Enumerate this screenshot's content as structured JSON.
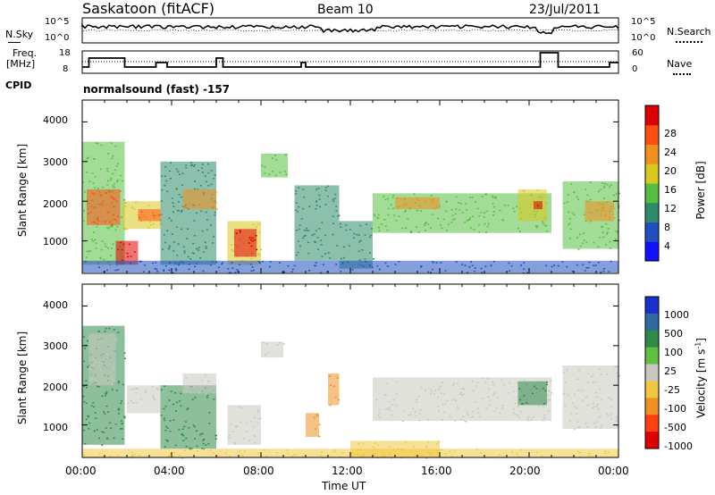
{
  "header": {
    "station": "Saskatoon (fitACF)",
    "beam": "Beam 10",
    "date": "23/Jul/2011"
  },
  "top_panels": {
    "nsky_label": "N.Sky",
    "nsky_ticks": [
      "10^5",
      "10^0"
    ],
    "nsearch_label": "N.Search",
    "nsearch_ticks": [
      "10^5",
      "10^0"
    ],
    "freq_label_1": "Freq.",
    "freq_label_2": "[MHz]",
    "freq_ticks": [
      "18",
      "8"
    ],
    "nave_label": "Nave",
    "nave_ticks": [
      "60",
      "0"
    ],
    "cpid_label": "CPID",
    "cpid_value": "normalsound (fast) -157"
  },
  "chart_data": [
    {
      "type": "heatmap",
      "name": "power-panel",
      "ylabel": "Slant Range [km]",
      "yticks": [
        1000,
        2000,
        3000,
        4000
      ],
      "ylim": [
        180,
        4550
      ],
      "xlim_hours": [
        0,
        24
      ],
      "colorbar_label": "Power [dB]",
      "colorbar_ticks": [
        "4",
        "8",
        "12",
        "16",
        "20",
        "24",
        "28"
      ],
      "colorbar_colors": [
        "#1010ff",
        "#2050c0",
        "#2f8a6a",
        "#55c040",
        "#d8c820",
        "#f09020",
        "#ff5010",
        "#e00000"
      ],
      "regions": [
        {
          "h0": 0.0,
          "h1": 1.9,
          "r0": 400,
          "r1": 3500,
          "level": 3
        },
        {
          "h0": 0.2,
          "h1": 1.7,
          "r0": 1400,
          "r1": 2300,
          "level": 6
        },
        {
          "h0": 1.5,
          "h1": 2.5,
          "r0": 400,
          "r1": 1000,
          "level": 7
        },
        {
          "h0": 1.8,
          "h1": 3.5,
          "r0": 1300,
          "r1": 2000,
          "level": 4
        },
        {
          "h0": 2.5,
          "h1": 3.5,
          "r0": 1500,
          "r1": 1800,
          "level": 6
        },
        {
          "h0": 3.5,
          "h1": 6.0,
          "r0": 400,
          "r1": 3000,
          "level": 2
        },
        {
          "h0": 4.5,
          "h1": 6.0,
          "r0": 1800,
          "r1": 2300,
          "level": 5
        },
        {
          "h0": 6.5,
          "h1": 8.0,
          "r0": 400,
          "r1": 1500,
          "level": 4
        },
        {
          "h0": 6.8,
          "h1": 7.8,
          "r0": 600,
          "r1": 1300,
          "level": 7
        },
        {
          "h0": 8.0,
          "h1": 9.2,
          "r0": 2600,
          "r1": 3200,
          "level": 3
        },
        {
          "h0": 9.5,
          "h1": 11.5,
          "r0": 500,
          "r1": 2400,
          "level": 2
        },
        {
          "h0": 11.5,
          "h1": 13.0,
          "r0": 300,
          "r1": 1500,
          "level": 2
        },
        {
          "h0": 13.0,
          "h1": 21.0,
          "r0": 1200,
          "r1": 2200,
          "level": 3
        },
        {
          "h0": 14.0,
          "h1": 16.0,
          "r0": 1800,
          "r1": 2100,
          "level": 5
        },
        {
          "h0": 19.5,
          "h1": 20.8,
          "r0": 1500,
          "r1": 2300,
          "level": 4
        },
        {
          "h0": 20.2,
          "h1": 20.6,
          "r0": 1800,
          "r1": 2000,
          "level": 7
        },
        {
          "h0": 21.5,
          "h1": 24.0,
          "r0": 800,
          "r1": 2500,
          "level": 3
        },
        {
          "h0": 22.5,
          "h1": 23.8,
          "r0": 1500,
          "r1": 2000,
          "level": 5
        },
        {
          "h0": 0.0,
          "h1": 24.0,
          "r0": 200,
          "r1": 500,
          "level": 1
        }
      ]
    },
    {
      "type": "heatmap",
      "name": "velocity-panel",
      "ylabel": "Slant Range [km]",
      "yticks": [
        1000,
        2000,
        3000,
        4000
      ],
      "ylim": [
        180,
        4550
      ],
      "xlim_hours": [
        0,
        24
      ],
      "xticks": [
        "00:00",
        "04:00",
        "08:00",
        "12:00",
        "16:00",
        "20:00",
        "00:00"
      ],
      "xlabel": "Time UT",
      "colorbar_label": "Velocity [m s",
      "colorbar_label_sup": "-1",
      "colorbar_ticks": [
        "1000",
        "500",
        "100",
        "25",
        "-25",
        "-100",
        "-500",
        "-1000"
      ],
      "colorbar_colors": [
        "#1a2fd0",
        "#2f6aa0",
        "#2f8a4a",
        "#60c040",
        "#c8c8c0",
        "#f0c840",
        "#f09020",
        "#ff4010",
        "#e00000"
      ],
      "regions": [
        {
          "h0": 0.0,
          "h1": 1.9,
          "r0": 500,
          "r1": 3500,
          "color": "#2f8a4a"
        },
        {
          "h0": 0.3,
          "h1": 1.5,
          "r0": 2000,
          "r1": 3300,
          "color": "#c8c8c0"
        },
        {
          "h0": 2.0,
          "h1": 3.5,
          "r0": 1300,
          "r1": 2000,
          "color": "#c8c8c0"
        },
        {
          "h0": 3.5,
          "h1": 6.0,
          "r0": 400,
          "r1": 2000,
          "color": "#2f8a4a"
        },
        {
          "h0": 4.5,
          "h1": 6.0,
          "r0": 1800,
          "r1": 2300,
          "color": "#c8c8c0"
        },
        {
          "h0": 6.5,
          "h1": 8.0,
          "r0": 500,
          "r1": 1500,
          "color": "#c8c8c0"
        },
        {
          "h0": 8.0,
          "h1": 9.0,
          "r0": 2700,
          "r1": 3100,
          "color": "#c8c8c0"
        },
        {
          "h0": 10.0,
          "h1": 10.6,
          "r0": 700,
          "r1": 1300,
          "color": "#f09020"
        },
        {
          "h0": 11.0,
          "h1": 11.5,
          "r0": 1500,
          "r1": 2300,
          "color": "#f09020"
        },
        {
          "h0": 12.0,
          "h1": 16.0,
          "r0": 200,
          "r1": 600,
          "color": "#f0c840"
        },
        {
          "h0": 13.0,
          "h1": 21.0,
          "r0": 1100,
          "r1": 2200,
          "color": "#c8c8c0"
        },
        {
          "h0": 19.5,
          "h1": 20.8,
          "r0": 1500,
          "r1": 2100,
          "color": "#2f8a4a"
        },
        {
          "h0": 21.5,
          "h1": 24.0,
          "r0": 900,
          "r1": 2500,
          "color": "#c8c8c0"
        },
        {
          "h0": 0.0,
          "h1": 24.0,
          "r0": 180,
          "r1": 400,
          "color": "#f0c840"
        }
      ]
    }
  ]
}
